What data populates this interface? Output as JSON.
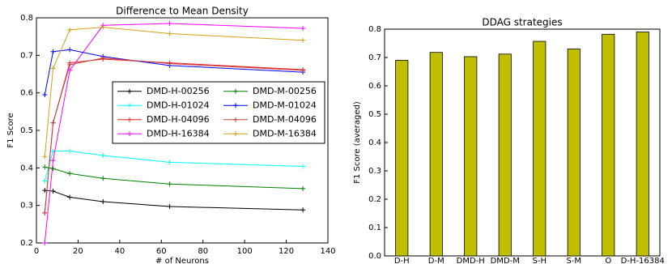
{
  "chart_data": [
    {
      "type": "line",
      "title": "Difference to Mean Density",
      "x_label": "# of Neurons",
      "y_label": "F1 Score",
      "x": [
        4,
        8,
        16,
        32,
        64,
        128
      ],
      "series": [
        {
          "name": "DMD-H-00256",
          "color": "#000000",
          "values": [
            0.34,
            0.338,
            0.322,
            0.31,
            0.297,
            0.288
          ]
        },
        {
          "name": "DMD-H-01024",
          "color": "#00ffff",
          "values": [
            0.365,
            0.445,
            0.445,
            0.433,
            0.415,
            0.404
          ]
        },
        {
          "name": "DMD-H-04096",
          "color": "#ff2020",
          "values": [
            0.28,
            0.52,
            0.68,
            0.69,
            0.68,
            0.662
          ]
        },
        {
          "name": "DMD-H-16384",
          "color": "#ff00ff",
          "values": [
            0.2,
            0.42,
            0.66,
            0.78,
            0.785,
            0.772
          ]
        },
        {
          "name": "DMD-M-00256",
          "color": "#008000",
          "values": [
            0.402,
            0.398,
            0.385,
            0.372,
            0.357,
            0.345
          ]
        },
        {
          "name": "DMD-M-01024",
          "color": "#0000ff",
          "values": [
            0.595,
            0.71,
            0.715,
            0.697,
            0.673,
            0.655
          ]
        },
        {
          "name": "DMD-M-04096",
          "color": "#c04040",
          "values": [
            0.28,
            0.52,
            0.675,
            0.693,
            0.678,
            0.66
          ]
        },
        {
          "name": "DMD-M-16384",
          "color": "#d4a017",
          "values": [
            0.43,
            0.665,
            0.768,
            0.775,
            0.758,
            0.74
          ]
        }
      ],
      "xlim": [
        0,
        140
      ],
      "xticks": [
        0,
        20,
        40,
        60,
        80,
        100,
        120,
        140
      ],
      "ylim": [
        0.2,
        0.8
      ],
      "yticks": [
        0.2,
        0.3,
        0.4,
        0.5,
        0.6,
        0.7,
        0.8
      ],
      "legend": "center right"
    },
    {
      "type": "bar",
      "title": "DDAG strategies",
      "y_label": "F1 Score (averaged)",
      "categories": [
        "D-H",
        "D-M",
        "DMD-H",
        "DMD-M",
        "S-H",
        "S-M",
        "O",
        "D-H-16384"
      ],
      "values": [
        0.69,
        0.718,
        0.703,
        0.712,
        0.757,
        0.73,
        0.782,
        0.79
      ],
      "color": "#bfbf00",
      "ylim": [
        0,
        0.8
      ],
      "yticks": [
        {
          "value": 0,
          "label": "0.0"
        },
        0.1,
        0.2,
        0.3,
        0.4,
        0.5,
        0.6,
        0.7,
        0.8
      ]
    }
  ]
}
